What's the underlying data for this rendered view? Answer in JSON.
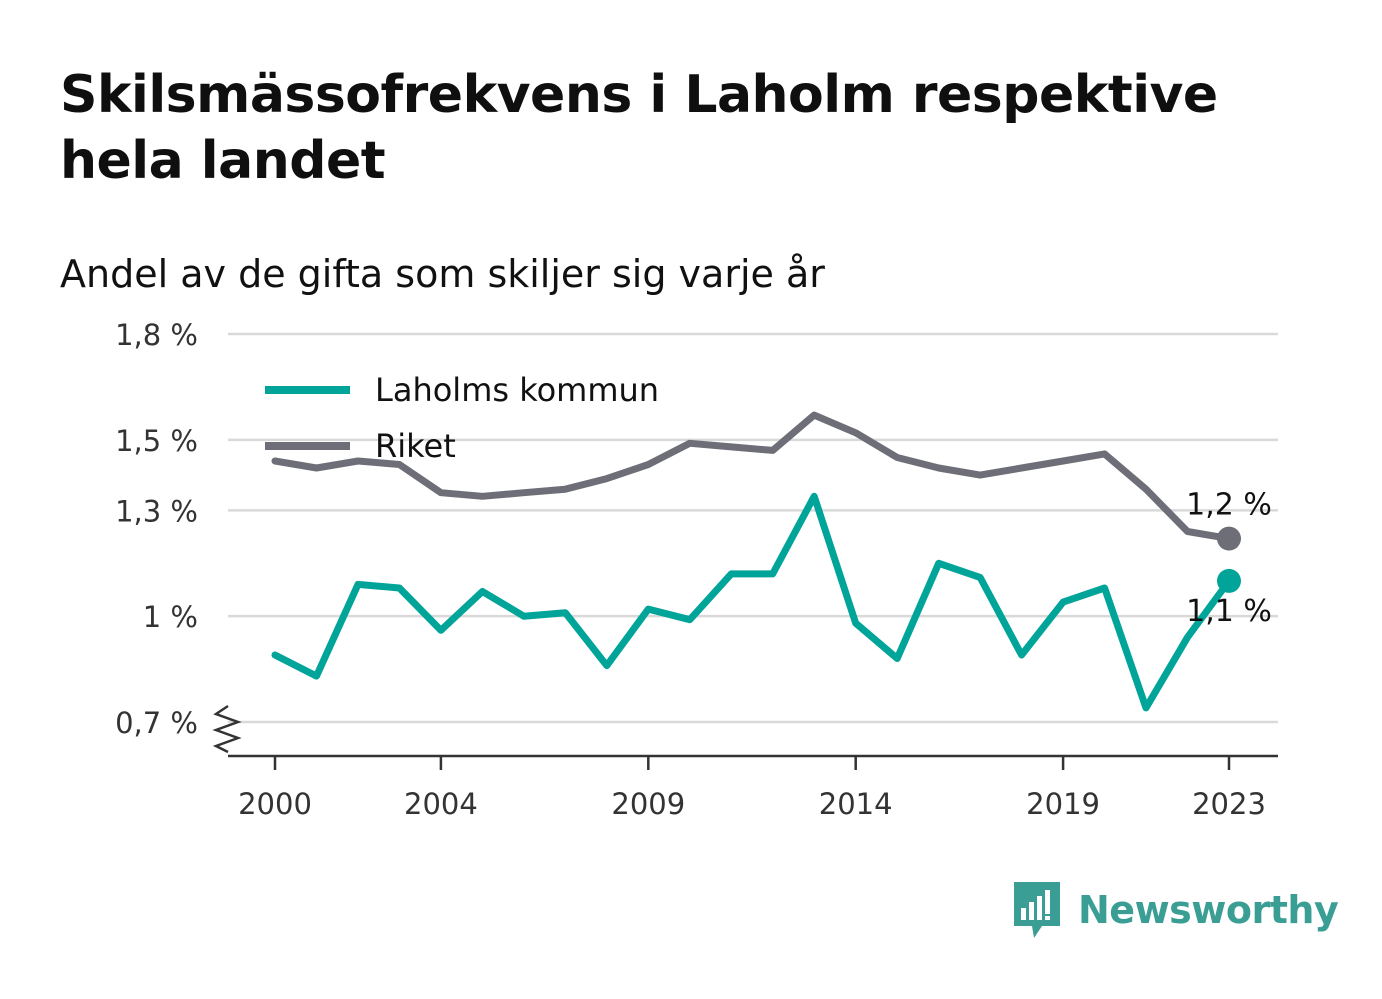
{
  "title": "Skilsmässofrekvens i Laholm respektive hela landet",
  "subtitle": "Andel av de gifta som skiljer sig varje år",
  "brand": {
    "name": "Newsworthy",
    "icon": "bar-chart-speech-bubble-icon",
    "color": "#3a9e95"
  },
  "chart_data": {
    "type": "line",
    "x": [
      2000,
      2001,
      2002,
      2003,
      2004,
      2005,
      2006,
      2007,
      2008,
      2009,
      2010,
      2011,
      2012,
      2013,
      2014,
      2015,
      2016,
      2017,
      2018,
      2019,
      2020,
      2021,
      2022,
      2023
    ],
    "x_ticks": [
      2000,
      2004,
      2009,
      2014,
      2019,
      2023
    ],
    "x_tick_labels": [
      "2000",
      "2004",
      "2009",
      "2014",
      "2019",
      "2023"
    ],
    "y_ticks": [
      0.7,
      1.0,
      1.3,
      1.5,
      1.8
    ],
    "y_tick_labels": [
      "0,7 %",
      "1 %",
      "1,3 %",
      "1,5 %",
      "1,8 %"
    ],
    "ylim": [
      0.6,
      1.8
    ],
    "y_axis_break": true,
    "grid": true,
    "legend_position": "top-left",
    "series": [
      {
        "name": "Laholms kommun",
        "color": "#00a499",
        "values": [
          0.89,
          0.83,
          1.09,
          1.08,
          0.96,
          1.07,
          1.0,
          1.01,
          0.86,
          1.02,
          0.99,
          1.12,
          1.12,
          1.34,
          0.98,
          0.88,
          1.15,
          1.11,
          0.89,
          1.04,
          1.08,
          0.74,
          0.94,
          1.1
        ],
        "end_label": "1,1 %"
      },
      {
        "name": "Riket",
        "color": "#6e6e78",
        "values": [
          1.44,
          1.42,
          1.44,
          1.43,
          1.35,
          1.34,
          1.35,
          1.36,
          1.39,
          1.43,
          1.49,
          1.48,
          1.47,
          1.57,
          1.52,
          1.45,
          1.42,
          1.4,
          1.42,
          1.44,
          1.46,
          1.36,
          1.24,
          1.22
        ],
        "end_label": "1,2 %"
      }
    ]
  }
}
